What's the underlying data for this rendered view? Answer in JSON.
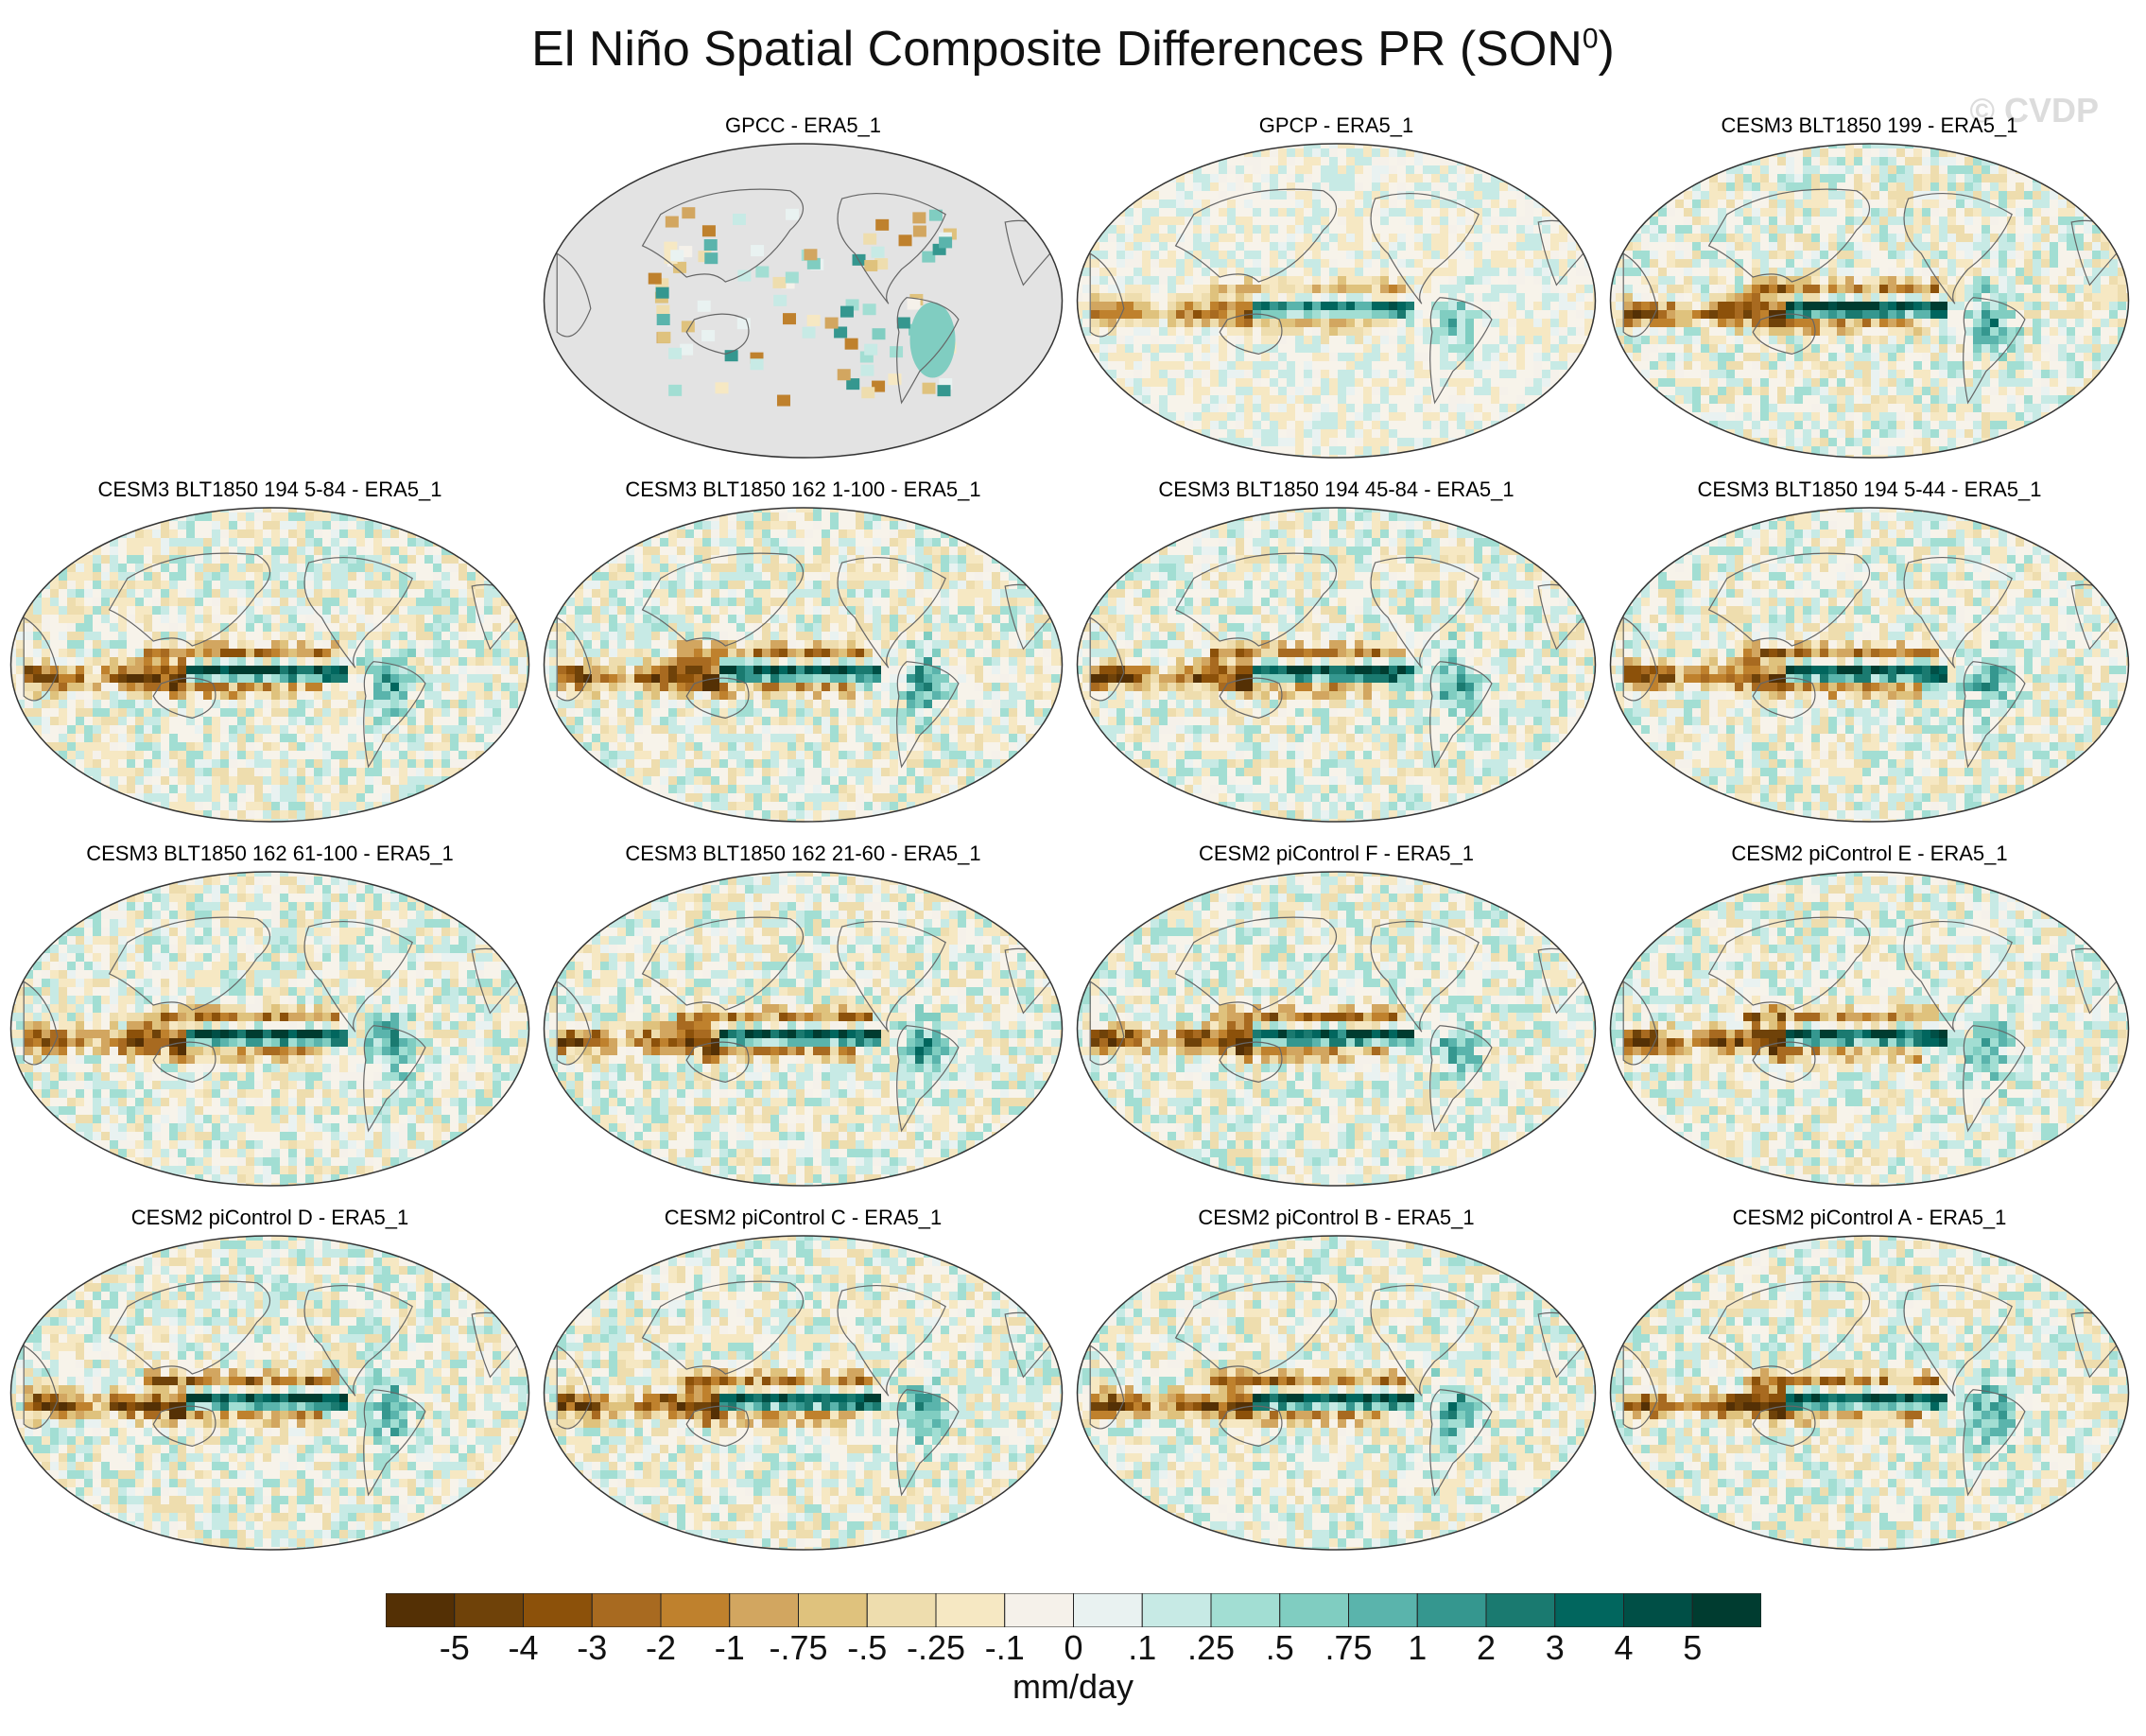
{
  "figure": {
    "title": "El Niño Spatial Composite Differences PR (SON",
    "title_sup": "0",
    "title_end": ")",
    "watermark": "© CVDP"
  },
  "panels": [
    {
      "title": "GPCC - ERA5_1",
      "kind": "gpcc"
    },
    {
      "title": "GPCP - ERA5_1",
      "kind": "obs"
    },
    {
      "title": "CESM3 BLT1850 199 - ERA5_1",
      "kind": "model"
    },
    {
      "title": "CESM3 BLT1850 194 5-84 - ERA5_1",
      "kind": "model"
    },
    {
      "title": "CESM3 BLT1850 162 1-100 - ERA5_1",
      "kind": "model"
    },
    {
      "title": "CESM3 BLT1850 194 45-84 - ERA5_1",
      "kind": "model"
    },
    {
      "title": "CESM3 BLT1850 194 5-44 - ERA5_1",
      "kind": "model"
    },
    {
      "title": "CESM3 BLT1850 162 61-100 - ERA5_1",
      "kind": "model"
    },
    {
      "title": "CESM3 BLT1850 162 21-60 - ERA5_1",
      "kind": "model"
    },
    {
      "title": "CESM2 piControl F - ERA5_1",
      "kind": "model"
    },
    {
      "title": "CESM2 piControl E - ERA5_1",
      "kind": "model"
    },
    {
      "title": "CESM2 piControl D - ERA5_1",
      "kind": "model"
    },
    {
      "title": "CESM2 piControl C - ERA5_1",
      "kind": "model"
    },
    {
      "title": "CESM2 piControl B - ERA5_1",
      "kind": "model"
    },
    {
      "title": "CESM2 piControl A - ERA5_1",
      "kind": "model"
    }
  ],
  "colorbar": {
    "units": "mm/day",
    "labels": [
      "-5",
      "-4",
      "-3",
      "-2",
      "-1",
      "-.75",
      "-.5",
      "-.25",
      "-.1",
      "0",
      ".1",
      ".25",
      ".5",
      ".75",
      "1",
      "2",
      "3",
      "4",
      "5"
    ],
    "colors": [
      "#543005",
      "#6f4209",
      "#8c510a",
      "#a86a20",
      "#bf812d",
      "#d2a660",
      "#dfc27d",
      "#eeddae",
      "#f6e8c3",
      "#f5f1ea",
      "#e9f2f1",
      "#c7eae5",
      "#a2ded3",
      "#80cdc1",
      "#5ab4ac",
      "#35978f",
      "#1a7a70",
      "#01665e",
      "#004f46",
      "#003c30"
    ]
  }
}
